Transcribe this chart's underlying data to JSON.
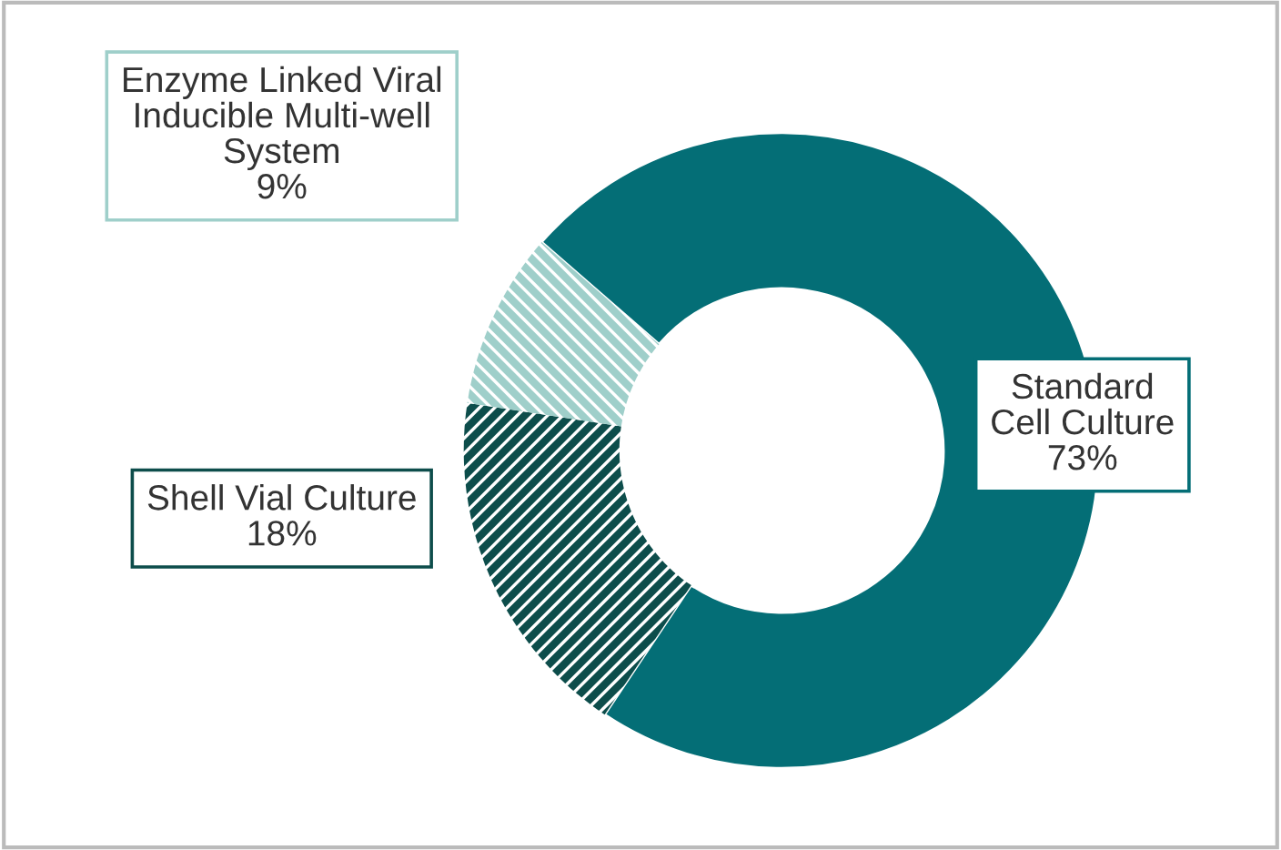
{
  "chart_data": {
    "type": "donut",
    "categories": [
      "Standard\nCell Culture",
      "Shell Vial Culture",
      "Enzyme Linked Viral\nInducible Multi-well\nSystem"
    ],
    "values": [
      73,
      18,
      9
    ],
    "colors": [
      "#046e76",
      "#0d4d4b",
      "#9fcfca"
    ],
    "value_labels": [
      "73%",
      "18%",
      "9%"
    ],
    "legend": false
  }
}
